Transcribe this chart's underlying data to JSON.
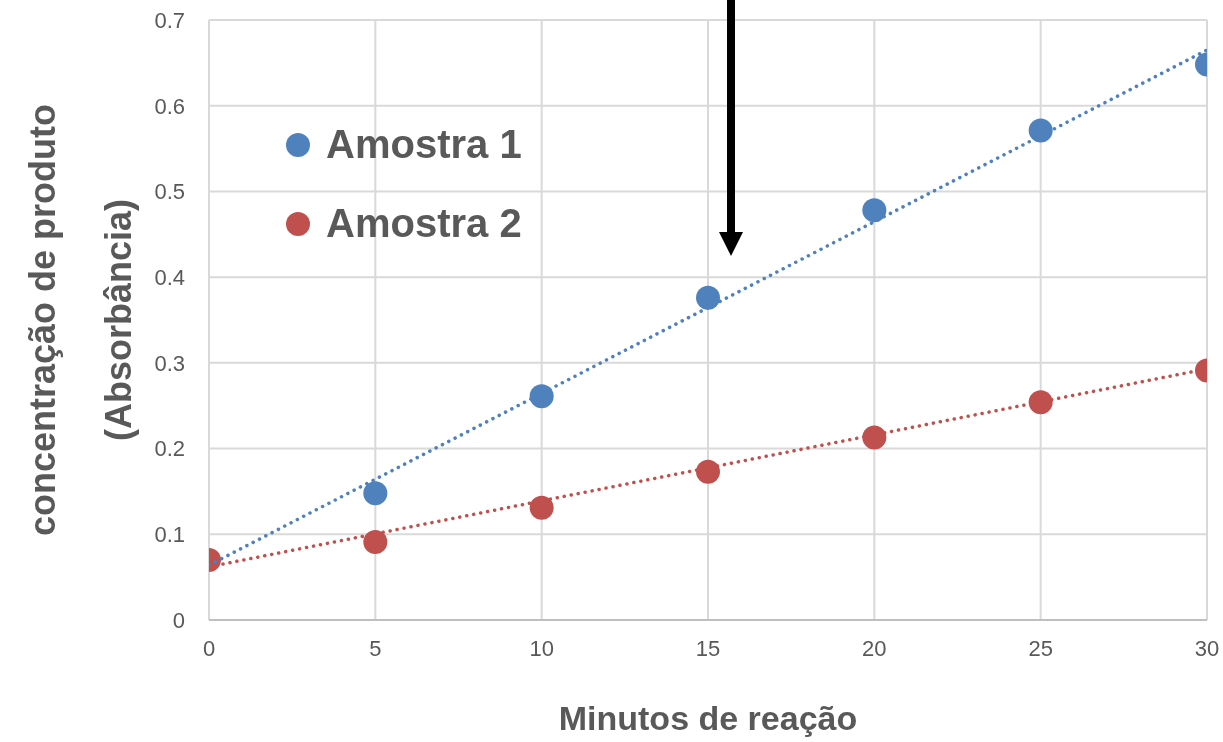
{
  "chart_data": {
    "type": "scatter",
    "xlabel": "Minutos de reação",
    "ylabel": "concentração de produto\n(Absorbância)",
    "xlim": [
      0,
      30
    ],
    "xticks": [
      0,
      5,
      10,
      15,
      20,
      25,
      30
    ],
    "ylim": [
      0,
      0.7
    ],
    "yticks": [
      0,
      0.1,
      0.2,
      0.3,
      0.4,
      0.5,
      0.6,
      0.7
    ],
    "grid": true,
    "legend": "top left",
    "marker": "circle",
    "series": [
      {
        "name": "Amostra 1",
        "color": "#4f81bd",
        "x": [
          5,
          10,
          15,
          20,
          25,
          30
        ],
        "values": [
          0.148,
          0.261,
          0.376,
          0.478,
          0.571,
          0.648
        ]
      },
      {
        "name": "Amostra 2",
        "color": "#c0504d",
        "x": [
          0,
          5,
          10,
          15,
          20,
          25,
          30
        ],
        "values": [
          0.07,
          0.091,
          0.131,
          0.173,
          0.213,
          0.254,
          0.291
        ]
      },
      {
        "type": "line",
        "color": "#4f81bd",
        "x": [
          0,
          30
        ],
        "values": [
          0.064,
          0.665
        ],
        "line_style": "dotted",
        "marker": "none"
      },
      {
        "type": "line",
        "color": "#c0504d",
        "x": [
          0,
          30
        ],
        "values": [
          0.062,
          0.293
        ],
        "line_style": "dotted",
        "marker": "none"
      }
    ]
  }
}
